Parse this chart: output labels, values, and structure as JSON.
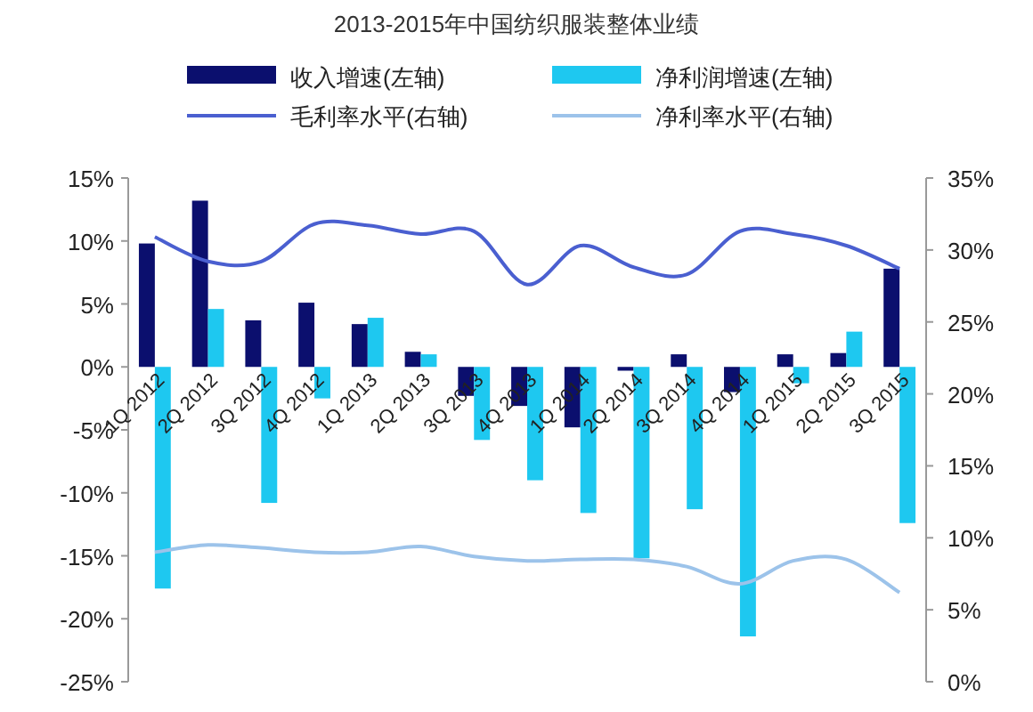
{
  "chart_data": {
    "type": "bar",
    "title": "2013-2015年中国纺织服装整体业绩",
    "categories": [
      "1Q 2012",
      "2Q 2012",
      "3Q 2012",
      "4Q 2012",
      "1Q 2013",
      "2Q 2013",
      "3Q 2013",
      "4Q 2013",
      "1Q 2014",
      "2Q 2014",
      "3Q 2014",
      "4Q 2014",
      "1Q 2015",
      "2Q 2015",
      "3Q 2015"
    ],
    "series": [
      {
        "name": "收入增速(左轴)",
        "color": "#0b0f6e",
        "values": [
          9.8,
          13.2,
          3.7,
          5.1,
          3.4,
          1.2,
          -2.3,
          -3.1,
          -4.8,
          -0.3,
          1.0,
          -2.0,
          1.0,
          1.1,
          7.8
        ]
      },
      {
        "name": "净利润增速(左轴)",
        "color": "#1ec8f0",
        "values": [
          -17.6,
          4.6,
          -10.8,
          -2.5,
          3.9,
          1.0,
          -5.8,
          -9.0,
          -11.6,
          -15.2,
          -11.3,
          -21.4,
          -1.3,
          2.8,
          -12.4
        ]
      },
      {
        "name": "毛利率水平(右轴)",
        "type": "line",
        "axis": "y2",
        "color": "#4a5fd0",
        "values": [
          30.9,
          29.2,
          29.2,
          31.8,
          31.7,
          31.1,
          31.3,
          27.6,
          30.3,
          28.8,
          28.3,
          31.3,
          31.1,
          30.3,
          28.7
        ]
      },
      {
        "name": "净利率水平(右轴)",
        "type": "line",
        "axis": "y2",
        "color": "#9cc3ea",
        "values": [
          9.0,
          9.5,
          9.3,
          9.0,
          9.0,
          9.4,
          8.7,
          8.4,
          8.5,
          8.5,
          8.0,
          6.8,
          8.4,
          8.5,
          6.2
        ]
      }
    ],
    "ylim": [
      -25,
      15
    ],
    "yticks": [
      {
        "value": -25,
        "label": "-25%"
      },
      {
        "value": -20,
        "label": "-20%"
      },
      {
        "value": -15,
        "label": "-15%"
      },
      {
        "value": -10,
        "label": "-10%"
      },
      {
        "value": -5,
        "label": "-5%"
      },
      {
        "value": 0,
        "label": "0%"
      },
      {
        "value": 5,
        "label": "5%"
      },
      {
        "value": 10,
        "label": "10%"
      },
      {
        "value": 15,
        "label": "15%"
      }
    ],
    "y2lim": [
      0,
      35
    ],
    "y2ticks": [
      {
        "value": 0,
        "label": "0%"
      },
      {
        "value": 5,
        "label": "5%"
      },
      {
        "value": 10,
        "label": "10%"
      },
      {
        "value": 15,
        "label": "15%"
      },
      {
        "value": 20,
        "label": "20%"
      },
      {
        "value": 25,
        "label": "25%"
      },
      {
        "value": 30,
        "label": "30%"
      },
      {
        "value": 35,
        "label": "35%"
      }
    ],
    "legend": "top",
    "grid": false
  }
}
